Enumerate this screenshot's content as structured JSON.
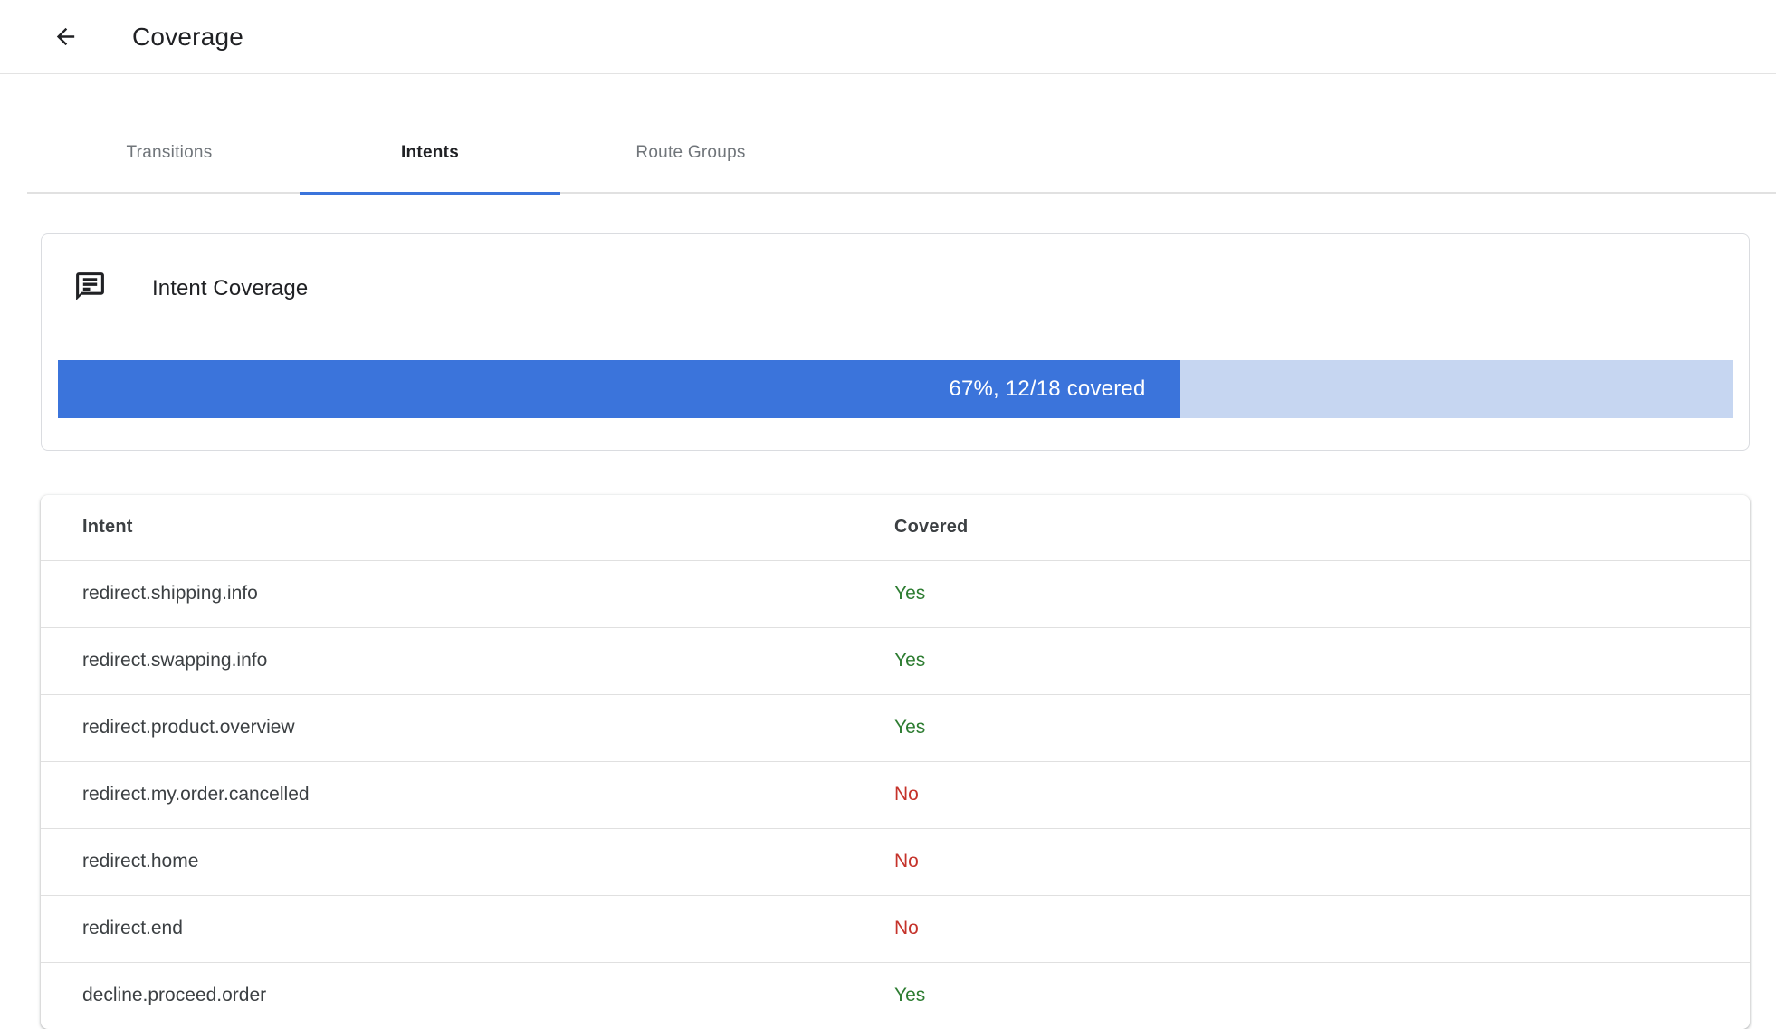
{
  "header": {
    "title": "Coverage",
    "back_icon": "arrow-back-icon"
  },
  "tabs": [
    {
      "label": "Transitions",
      "active": false
    },
    {
      "label": "Intents",
      "active": true
    },
    {
      "label": "Route Groups",
      "active": false
    }
  ],
  "coverage_card": {
    "icon": "chat-bubble-icon",
    "title": "Intent Coverage",
    "progress": {
      "percent": 67,
      "covered": 12,
      "total": 18,
      "label": "67%, 12/18 covered"
    }
  },
  "table": {
    "columns": {
      "intent": "Intent",
      "covered": "Covered"
    },
    "rows": [
      {
        "intent": "redirect.shipping.info",
        "covered": "Yes"
      },
      {
        "intent": "redirect.swapping.info",
        "covered": "Yes"
      },
      {
        "intent": "redirect.product.overview",
        "covered": "Yes"
      },
      {
        "intent": "redirect.my.order.cancelled",
        "covered": "No"
      },
      {
        "intent": "redirect.home",
        "covered": "No"
      },
      {
        "intent": "redirect.end",
        "covered": "No"
      },
      {
        "intent": "decline.proceed.order",
        "covered": "Yes"
      }
    ]
  },
  "colors": {
    "accent_blue": "#3b74db",
    "progress_track": "#c6d6f1",
    "covered_yes_green": "#2e7d32",
    "covered_no_red": "#c5332b"
  }
}
